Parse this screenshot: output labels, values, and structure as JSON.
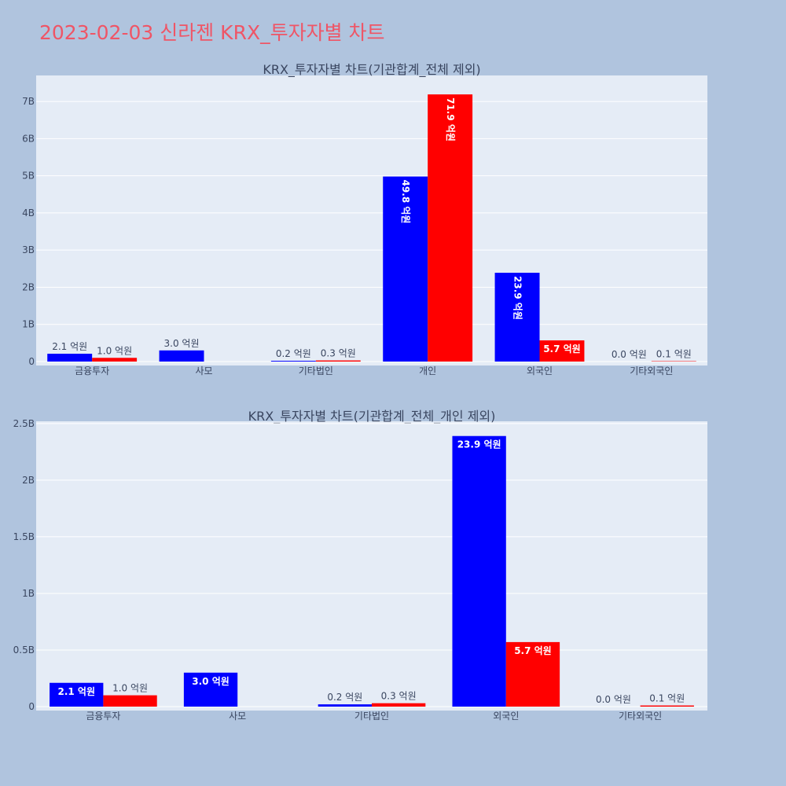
{
  "title": "2023-02-03 신라젠 KRX_투자자별 차트",
  "colors": {
    "buy": "#0000ff",
    "sell": "#ff0000",
    "plot_bg": "#e5ecf6",
    "page_bg": "#b0c4de"
  },
  "chart_data": [
    {
      "type": "bar",
      "title": "KRX_투자자별 차트(기관합계_전체 제외)",
      "categories": [
        "금융투자",
        "사모",
        "기타법인",
        "개인",
        "외국인",
        "기타외국인"
      ],
      "series": [
        {
          "color": "#0000ff",
          "values": [
            210000000,
            300000000,
            20000000,
            4980000000,
            2390000000,
            0
          ],
          "labels": [
            "2.1 억원",
            "3.0 억원",
            "0.2 억원",
            "49.8 억원",
            "23.9 억원",
            "0.0 억원"
          ]
        },
        {
          "color": "#ff0000",
          "values": [
            100000000,
            0,
            30000000,
            7190000000,
            570000000,
            10000000
          ],
          "labels": [
            "1.0 억원",
            "",
            "0.3 억원",
            "71.9 억원",
            "5.7 억원",
            "0.1 억원"
          ]
        }
      ],
      "ylim": [
        0,
        7700000000
      ],
      "yticks": [
        0,
        1000000000,
        2000000000,
        3000000000,
        4000000000,
        5000000000,
        6000000000,
        7000000000
      ],
      "ytick_labels": [
        "0",
        "1B",
        "2B",
        "3B",
        "4B",
        "5B",
        "6B",
        "7B"
      ],
      "grid": true,
      "legend": "none"
    },
    {
      "type": "bar",
      "title": "KRX_투자자별 차트(기관합계_전체_개인 제외)",
      "categories": [
        "금융투자",
        "사모",
        "기타법인",
        "외국인",
        "기타외국인"
      ],
      "series": [
        {
          "color": "#0000ff",
          "values": [
            210000000,
            300000000,
            20000000,
            2390000000,
            0
          ],
          "labels": [
            "2.1 억원",
            "3.0 억원",
            "0.2 억원",
            "23.9 억원",
            "0.0 억원"
          ]
        },
        {
          "color": "#ff0000",
          "values": [
            100000000,
            0,
            30000000,
            570000000,
            10000000
          ],
          "labels": [
            "1.0 억원",
            "",
            "0.3 억원",
            "5.7 억원",
            "0.1 억원"
          ]
        }
      ],
      "ylim": [
        0,
        2520000000
      ],
      "yticks": [
        0,
        500000000,
        1000000000,
        1500000000,
        2000000000,
        2500000000
      ],
      "ytick_labels": [
        "0",
        "0.5B",
        "1B",
        "1.5B",
        "2B",
        "2.5B"
      ],
      "grid": true,
      "legend": "none"
    }
  ]
}
